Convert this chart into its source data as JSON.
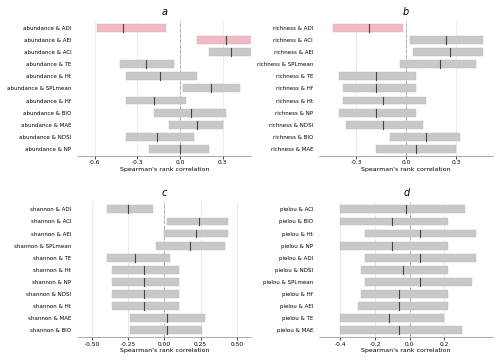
{
  "panels": [
    {
      "label": "a",
      "categories": [
        "abundance & ADI",
        "abundance & AEI",
        "abundance & ACI",
        "abundance & TE",
        "abundance & Ht",
        "abundance & SPLmean",
        "abundance & Hf",
        "abundance & BIO",
        "abundance & MAE",
        "abundance & NDSI",
        "abundance & NP"
      ],
      "bar_low": [
        -0.58,
        0.12,
        0.2,
        -0.42,
        -0.38,
        0.02,
        -0.38,
        -0.18,
        -0.08,
        -0.38,
        -0.22
      ],
      "bar_high": [
        -0.1,
        0.52,
        0.52,
        -0.04,
        0.12,
        0.42,
        0.04,
        0.32,
        0.3,
        0.1,
        0.2
      ],
      "bar_mid": [
        -0.4,
        0.32,
        0.36,
        -0.24,
        -0.14,
        0.22,
        -0.18,
        0.08,
        0.12,
        -0.16,
        0.0
      ],
      "bar_colors": [
        "#f2b8c6",
        "#f2b8c6",
        "#c8c8c8",
        "#c8c8c8",
        "#c8c8c8",
        "#c8c8c8",
        "#c8c8c8",
        "#c8c8c8",
        "#c8c8c8",
        "#c8c8c8",
        "#c8c8c8"
      ],
      "xlim": [
        -0.72,
        0.5
      ],
      "xticks": [
        -0.6,
        -0.3,
        0.0,
        0.3
      ],
      "xtick_labels": [
        "-0.6",
        "-0.3",
        "0.0",
        "0.3"
      ],
      "xlabel": "Spearman's rank correlation"
    },
    {
      "label": "b",
      "categories": [
        "richness & ADI",
        "richness & ACI",
        "richness & AEI",
        "richness & SPLmean",
        "richness & TE",
        "richness & Hf",
        "richness & Ht",
        "richness & NP",
        "richness & NDSI",
        "richness & BIO",
        "richness & MAE"
      ],
      "bar_low": [
        -0.44,
        0.02,
        0.04,
        -0.04,
        -0.4,
        -0.38,
        -0.38,
        -0.4,
        -0.36,
        -0.1,
        -0.18
      ],
      "bar_high": [
        -0.02,
        0.46,
        0.46,
        0.42,
        0.06,
        0.06,
        0.12,
        0.06,
        0.1,
        0.32,
        0.3
      ],
      "bar_mid": [
        -0.22,
        0.24,
        0.26,
        0.2,
        -0.18,
        -0.18,
        -0.14,
        -0.18,
        -0.14,
        0.12,
        0.06
      ],
      "bar_colors": [
        "#f2b8c6",
        "#c8c8c8",
        "#c8c8c8",
        "#c8c8c8",
        "#c8c8c8",
        "#c8c8c8",
        "#c8c8c8",
        "#c8c8c8",
        "#c8c8c8",
        "#c8c8c8",
        "#c8c8c8"
      ],
      "xlim": [
        -0.52,
        0.52
      ],
      "xticks": [
        -0.3,
        0.0,
        0.3
      ],
      "xtick_labels": [
        "-0.3",
        "0.0",
        "0.3"
      ],
      "xlabel": "Spearman's rank correlation"
    },
    {
      "label": "c",
      "categories": [
        "shannon & ADI",
        "shannon & ACI",
        "shannon & AEI",
        "shannon & SPLmean",
        "shannon & TE",
        "shannon & Ht",
        "shannon & NP",
        "shannon & NDSI",
        "shannon & Ht",
        "shannon & MAE",
        "shannon & BIO"
      ],
      "bar_low": [
        -0.4,
        0.02,
        0.0,
        -0.06,
        -0.4,
        -0.36,
        -0.36,
        -0.36,
        -0.36,
        -0.24,
        -0.24
      ],
      "bar_high": [
        -0.08,
        0.44,
        0.44,
        0.42,
        0.04,
        0.1,
        0.1,
        0.1,
        0.1,
        0.28,
        0.26
      ],
      "bar_mid": [
        -0.25,
        0.24,
        0.22,
        0.18,
        -0.2,
        -0.14,
        -0.14,
        -0.14,
        -0.14,
        0.02,
        0.02
      ],
      "bar_colors": [
        "#c8c8c8",
        "#c8c8c8",
        "#c8c8c8",
        "#c8c8c8",
        "#c8c8c8",
        "#c8c8c8",
        "#c8c8c8",
        "#c8c8c8",
        "#c8c8c8",
        "#c8c8c8",
        "#c8c8c8"
      ],
      "xlim": [
        -0.6,
        0.6
      ],
      "xticks": [
        -0.5,
        -0.25,
        0.0,
        0.25,
        0.5
      ],
      "xtick_labels": [
        "-0.50",
        "-0.25",
        "0.00",
        "0.25",
        "0.50"
      ],
      "xlabel": "Spearman's rank correlation"
    },
    {
      "label": "d",
      "categories": [
        "pielou & ACI",
        "pielou & BIO",
        "pielou & Ht",
        "pielou & NP",
        "pielou & ADI",
        "pielou & NDSI",
        "pielou & SPLmean",
        "pielou & Hf",
        "pielou & AEI",
        "pielou & TE",
        "pielou & MAE"
      ],
      "bar_low": [
        -0.4,
        -0.4,
        -0.26,
        -0.4,
        -0.26,
        -0.28,
        -0.26,
        -0.28,
        -0.3,
        -0.4,
        -0.4
      ],
      "bar_high": [
        0.32,
        0.22,
        0.38,
        0.22,
        0.38,
        0.22,
        0.36,
        0.22,
        0.22,
        0.2,
        0.3
      ],
      "bar_mid": [
        -0.02,
        -0.1,
        0.06,
        -0.1,
        0.06,
        -0.04,
        0.06,
        -0.06,
        -0.06,
        -0.12,
        -0.06
      ],
      "bar_colors": [
        "#c8c8c8",
        "#c8c8c8",
        "#c8c8c8",
        "#c8c8c8",
        "#c8c8c8",
        "#c8c8c8",
        "#c8c8c8",
        "#c8c8c8",
        "#c8c8c8",
        "#c8c8c8",
        "#c8c8c8"
      ],
      "xlim": [
        -0.52,
        0.48
      ],
      "xticks": [
        -0.4,
        -0.2,
        0.0,
        0.2
      ],
      "xtick_labels": [
        "-0.4",
        "-0.2",
        "0.0",
        "0.2"
      ],
      "xlabel": "Spearman's rank correlation"
    }
  ],
  "background_color": "#ffffff",
  "grid_color": "#e5e5e5",
  "bar_height": 0.65,
  "mid_line_color": "#444444",
  "dashed_line_color": "#aaaaaa"
}
